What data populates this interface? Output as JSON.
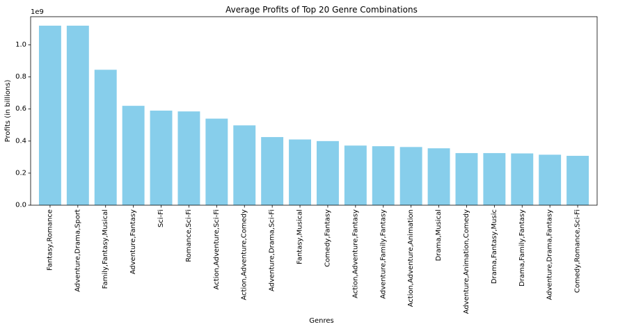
{
  "chart_data": {
    "type": "bar",
    "title": "Average Profits of Top 20 Genre Combinations",
    "xlabel": "Genres",
    "ylabel": "Profits (in billions)",
    "y_offset_label": "1e9",
    "ylim": [
      0,
      1.176
    ],
    "yticks": [
      "0.0",
      "0.2",
      "0.4",
      "0.6",
      "0.8",
      "1.0"
    ],
    "grid": false,
    "bar_color": "#87CEEB",
    "categories": [
      "Fantasy,Romance",
      "Adventure,Drama,Sport",
      "Family,Fantasy,Musical",
      "Adventure,Fantasy",
      "Sci-Fi",
      "Romance,Sci-Fi",
      "Action,Adventure,Sci-Fi",
      "Action,Adventure,Comedy",
      "Adventure,Drama,Sci-Fi",
      "Fantasy,Musical",
      "Comedy,Fantasy",
      "Action,Adventure,Fantasy",
      "Adventure,Family,Fantasy",
      "Action,Adventure,Animation",
      "Drama,Musical",
      "Adventure,Animation,Comedy",
      "Drama,Fantasy,Music",
      "Drama,Family,Fantasy",
      "Adventure,Drama,Fantasy",
      "Comedy,Romance,Sci-Fi"
    ],
    "values": [
      1.12,
      1.12,
      0.845,
      0.62,
      0.59,
      0.585,
      0.54,
      0.498,
      0.425,
      0.41,
      0.4,
      0.372,
      0.368,
      0.363,
      0.355,
      0.325,
      0.325,
      0.323,
      0.315,
      0.308
    ]
  }
}
